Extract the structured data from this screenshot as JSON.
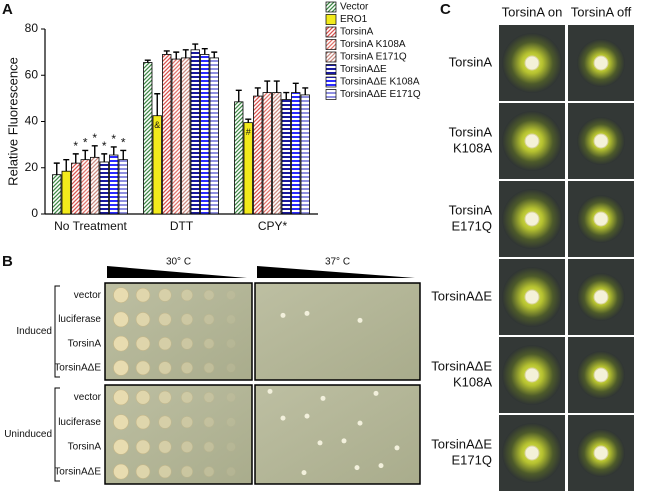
{
  "chart_data": {
    "type": "bar",
    "panel_label": "A",
    "ylabel": "Relative Fluorescence",
    "categories": [
      "No Treatment",
      "DTT",
      "CPY*"
    ],
    "ylim": [
      0,
      80
    ],
    "yticks": [
      0,
      20,
      40,
      60,
      80
    ],
    "legend_position": "right",
    "series": [
      {
        "name": "Vector",
        "color": "#3f8a46",
        "hatch": "diagonal",
        "values": [
          17,
          65.5,
          48.5
        ],
        "errors": [
          5,
          1,
          5
        ],
        "annotations": [
          null,
          null,
          null
        ]
      },
      {
        "name": "ERO1",
        "color": "#f2ea1c",
        "hatch": "none",
        "values": [
          18.5,
          42.5,
          39.5
        ],
        "errors": [
          5,
          9.5,
          1.5
        ],
        "annotations": [
          null,
          "&",
          "#"
        ]
      },
      {
        "name": "TorsinA",
        "color": "#d9534f",
        "hatch": "diagonal",
        "values": [
          22,
          69,
          51
        ],
        "errors": [
          4,
          1.5,
          3.5
        ],
        "annotations": [
          "*",
          null,
          null
        ]
      },
      {
        "name": "TorsinA K108A",
        "color": "#e0736a",
        "hatch": "diagonal",
        "values": [
          23.5,
          67,
          52.5
        ],
        "errors": [
          4,
          3,
          5
        ],
        "annotations": [
          "*",
          null,
          null
        ]
      },
      {
        "name": "TorsinA E171Q",
        "color": "#c98a80",
        "hatch": "diagonal",
        "values": [
          24.5,
          67.5,
          52.5
        ],
        "errors": [
          5,
          3.5,
          5
        ],
        "annotations": [
          "*",
          null,
          null
        ]
      },
      {
        "name": "TorsinAΔE",
        "color": "#1a1a9e",
        "hatch": "horizontal",
        "values": [
          22.5,
          71,
          49.5
        ],
        "errors": [
          3.5,
          2.5,
          3
        ],
        "annotations": [
          "*",
          null,
          null
        ]
      },
      {
        "name": "TorsinAΔE K108A",
        "color": "#2b2bff",
        "hatch": "horizontal",
        "values": [
          25.5,
          69,
          52.5
        ],
        "errors": [
          3.5,
          2.5,
          4
        ],
        "annotations": [
          "*",
          null,
          null
        ]
      },
      {
        "name": "TorsinAΔE E171Q",
        "color": "#8f8fe0",
        "hatch": "horizontal",
        "values": [
          23.5,
          67.5,
          51.5
        ],
        "errors": [
          4,
          2.5,
          3
        ],
        "annotations": [
          "*",
          null,
          null
        ]
      }
    ]
  },
  "panel_b": {
    "label": "B",
    "temperatures": [
      "30° C",
      "37° C"
    ],
    "groups": [
      {
        "name": "Induced",
        "rows": [
          "vector",
          "luciferase",
          "TorsinA",
          "TorsinAΔE"
        ]
      },
      {
        "name": "Uninduced",
        "rows": [
          "vector",
          "luciferase",
          "TorsinA",
          "TorsinAΔE"
        ]
      }
    ]
  },
  "panel_c": {
    "label": "C",
    "columns": [
      "TorsinA on",
      "TorsinA off"
    ],
    "rows": [
      [
        "TorsinA"
      ],
      [
        "TorsinA",
        "K108A"
      ],
      [
        "TorsinA",
        "E171Q"
      ],
      [
        "TorsinAΔE"
      ],
      [
        "TorsinAΔE",
        "K108A"
      ],
      [
        "TorsinAΔE",
        "E171Q"
      ]
    ]
  }
}
